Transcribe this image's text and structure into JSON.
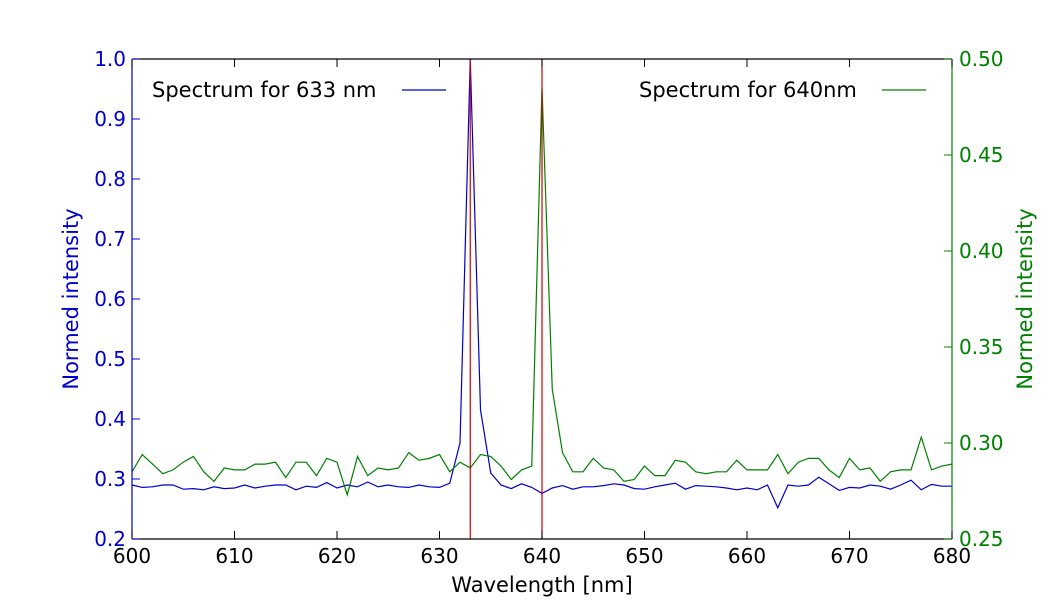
{
  "chart_data": {
    "type": "line",
    "xlabel": "Wavelength [nm]",
    "ylabel_left": "Normed intensity",
    "ylabel_right": "Normed intensity",
    "xlim": [
      600,
      680
    ],
    "ylim_left": [
      0.2,
      1.0
    ],
    "ylim_right": [
      0.25,
      0.5
    ],
    "xticks": [
      600,
      610,
      620,
      630,
      640,
      650,
      660,
      670,
      680
    ],
    "xtick_labels": [
      "600",
      "610",
      "620",
      "630",
      "640",
      "650",
      "660",
      "670",
      "680"
    ],
    "yticks_left": [
      0.2,
      0.3,
      0.4,
      0.5,
      0.6,
      0.7,
      0.8,
      0.9,
      1.0
    ],
    "ytick_labels_left": [
      "0.2",
      "0.3",
      "0.4",
      "0.5",
      "0.6",
      "0.7",
      "0.8",
      "0.9",
      "1.0"
    ],
    "yticks_right": [
      0.25,
      0.3,
      0.35,
      0.4,
      0.45,
      0.5
    ],
    "ytick_labels_right": [
      "0.25",
      "0.30",
      "0.35",
      "0.40",
      "0.45",
      "0.50"
    ],
    "grid": false,
    "vlines": [
      633,
      640
    ],
    "series": [
      {
        "name": "Spectrum for 633 nm",
        "axis": "left",
        "legend_position": "top-left",
        "x": [
          600,
          601,
          602,
          603,
          604,
          605,
          606,
          607,
          608,
          609,
          610,
          611,
          612,
          613,
          614,
          615,
          616,
          617,
          618,
          619,
          620,
          621,
          622,
          623,
          624,
          625,
          626,
          627,
          628,
          629,
          630,
          631,
          632,
          633,
          634,
          635,
          636,
          637,
          638,
          639,
          640,
          641,
          642,
          643,
          644,
          645,
          646,
          647,
          648,
          649,
          650,
          651,
          652,
          653,
          654,
          655,
          656,
          657,
          658,
          659,
          660,
          661,
          662,
          663,
          664,
          665,
          666,
          667,
          668,
          669,
          670,
          671,
          672,
          673,
          674,
          675,
          676,
          677,
          678,
          679,
          680
        ],
        "y": [
          0.29,
          0.286,
          0.287,
          0.29,
          0.29,
          0.283,
          0.284,
          0.282,
          0.287,
          0.284,
          0.285,
          0.29,
          0.285,
          0.288,
          0.29,
          0.29,
          0.282,
          0.288,
          0.286,
          0.294,
          0.285,
          0.29,
          0.287,
          0.295,
          0.287,
          0.29,
          0.287,
          0.286,
          0.29,
          0.287,
          0.286,
          0.293,
          0.36,
          1.0,
          0.415,
          0.31,
          0.29,
          0.284,
          0.292,
          0.286,
          0.276,
          0.285,
          0.289,
          0.283,
          0.287,
          0.287,
          0.289,
          0.292,
          0.29,
          0.284,
          0.283,
          0.287,
          0.29,
          0.293,
          0.283,
          0.289,
          0.288,
          0.287,
          0.285,
          0.282,
          0.285,
          0.282,
          0.29,
          0.252,
          0.29,
          0.288,
          0.29,
          0.303,
          0.292,
          0.281,
          0.286,
          0.285,
          0.29,
          0.288,
          0.283,
          0.29,
          0.298,
          0.282,
          0.291,
          0.288,
          0.288
        ]
      },
      {
        "name": "Spectrum for 640nm",
        "axis": "right",
        "legend_position": "top-right",
        "x": [
          600,
          601,
          602,
          603,
          604,
          605,
          606,
          607,
          608,
          609,
          610,
          611,
          612,
          613,
          614,
          615,
          616,
          617,
          618,
          619,
          620,
          621,
          622,
          623,
          624,
          625,
          626,
          627,
          628,
          629,
          630,
          631,
          632,
          633,
          634,
          635,
          636,
          637,
          638,
          639,
          640,
          641,
          642,
          643,
          644,
          645,
          646,
          647,
          648,
          649,
          650,
          651,
          652,
          653,
          654,
          655,
          656,
          657,
          658,
          659,
          660,
          661,
          662,
          663,
          664,
          665,
          666,
          667,
          668,
          669,
          670,
          671,
          672,
          673,
          674,
          675,
          676,
          677,
          678,
          679,
          680
        ],
        "y": [
          0.285,
          0.294,
          0.289,
          0.284,
          0.286,
          0.29,
          0.293,
          0.285,
          0.28,
          0.287,
          0.286,
          0.286,
          0.289,
          0.289,
          0.29,
          0.282,
          0.29,
          0.29,
          0.283,
          0.292,
          0.29,
          0.273,
          0.293,
          0.283,
          0.287,
          0.286,
          0.287,
          0.295,
          0.291,
          0.292,
          0.294,
          0.285,
          0.29,
          0.287,
          0.294,
          0.293,
          0.288,
          0.281,
          0.286,
          0.288,
          0.485,
          0.328,
          0.295,
          0.285,
          0.285,
          0.292,
          0.287,
          0.286,
          0.28,
          0.281,
          0.288,
          0.283,
          0.283,
          0.291,
          0.29,
          0.285,
          0.284,
          0.285,
          0.285,
          0.291,
          0.286,
          0.286,
          0.286,
          0.294,
          0.284,
          0.29,
          0.292,
          0.292,
          0.286,
          0.282,
          0.292,
          0.286,
          0.287,
          0.28,
          0.285,
          0.286,
          0.286,
          0.303,
          0.286,
          0.288,
          0.289
        ]
      }
    ],
    "colors": {
      "series_633": "#0000cc",
      "series_640": "#008000",
      "vline": "#cc0000",
      "left_axis": "#0000cc",
      "right_axis": "#008000",
      "spines": "#000000"
    }
  }
}
